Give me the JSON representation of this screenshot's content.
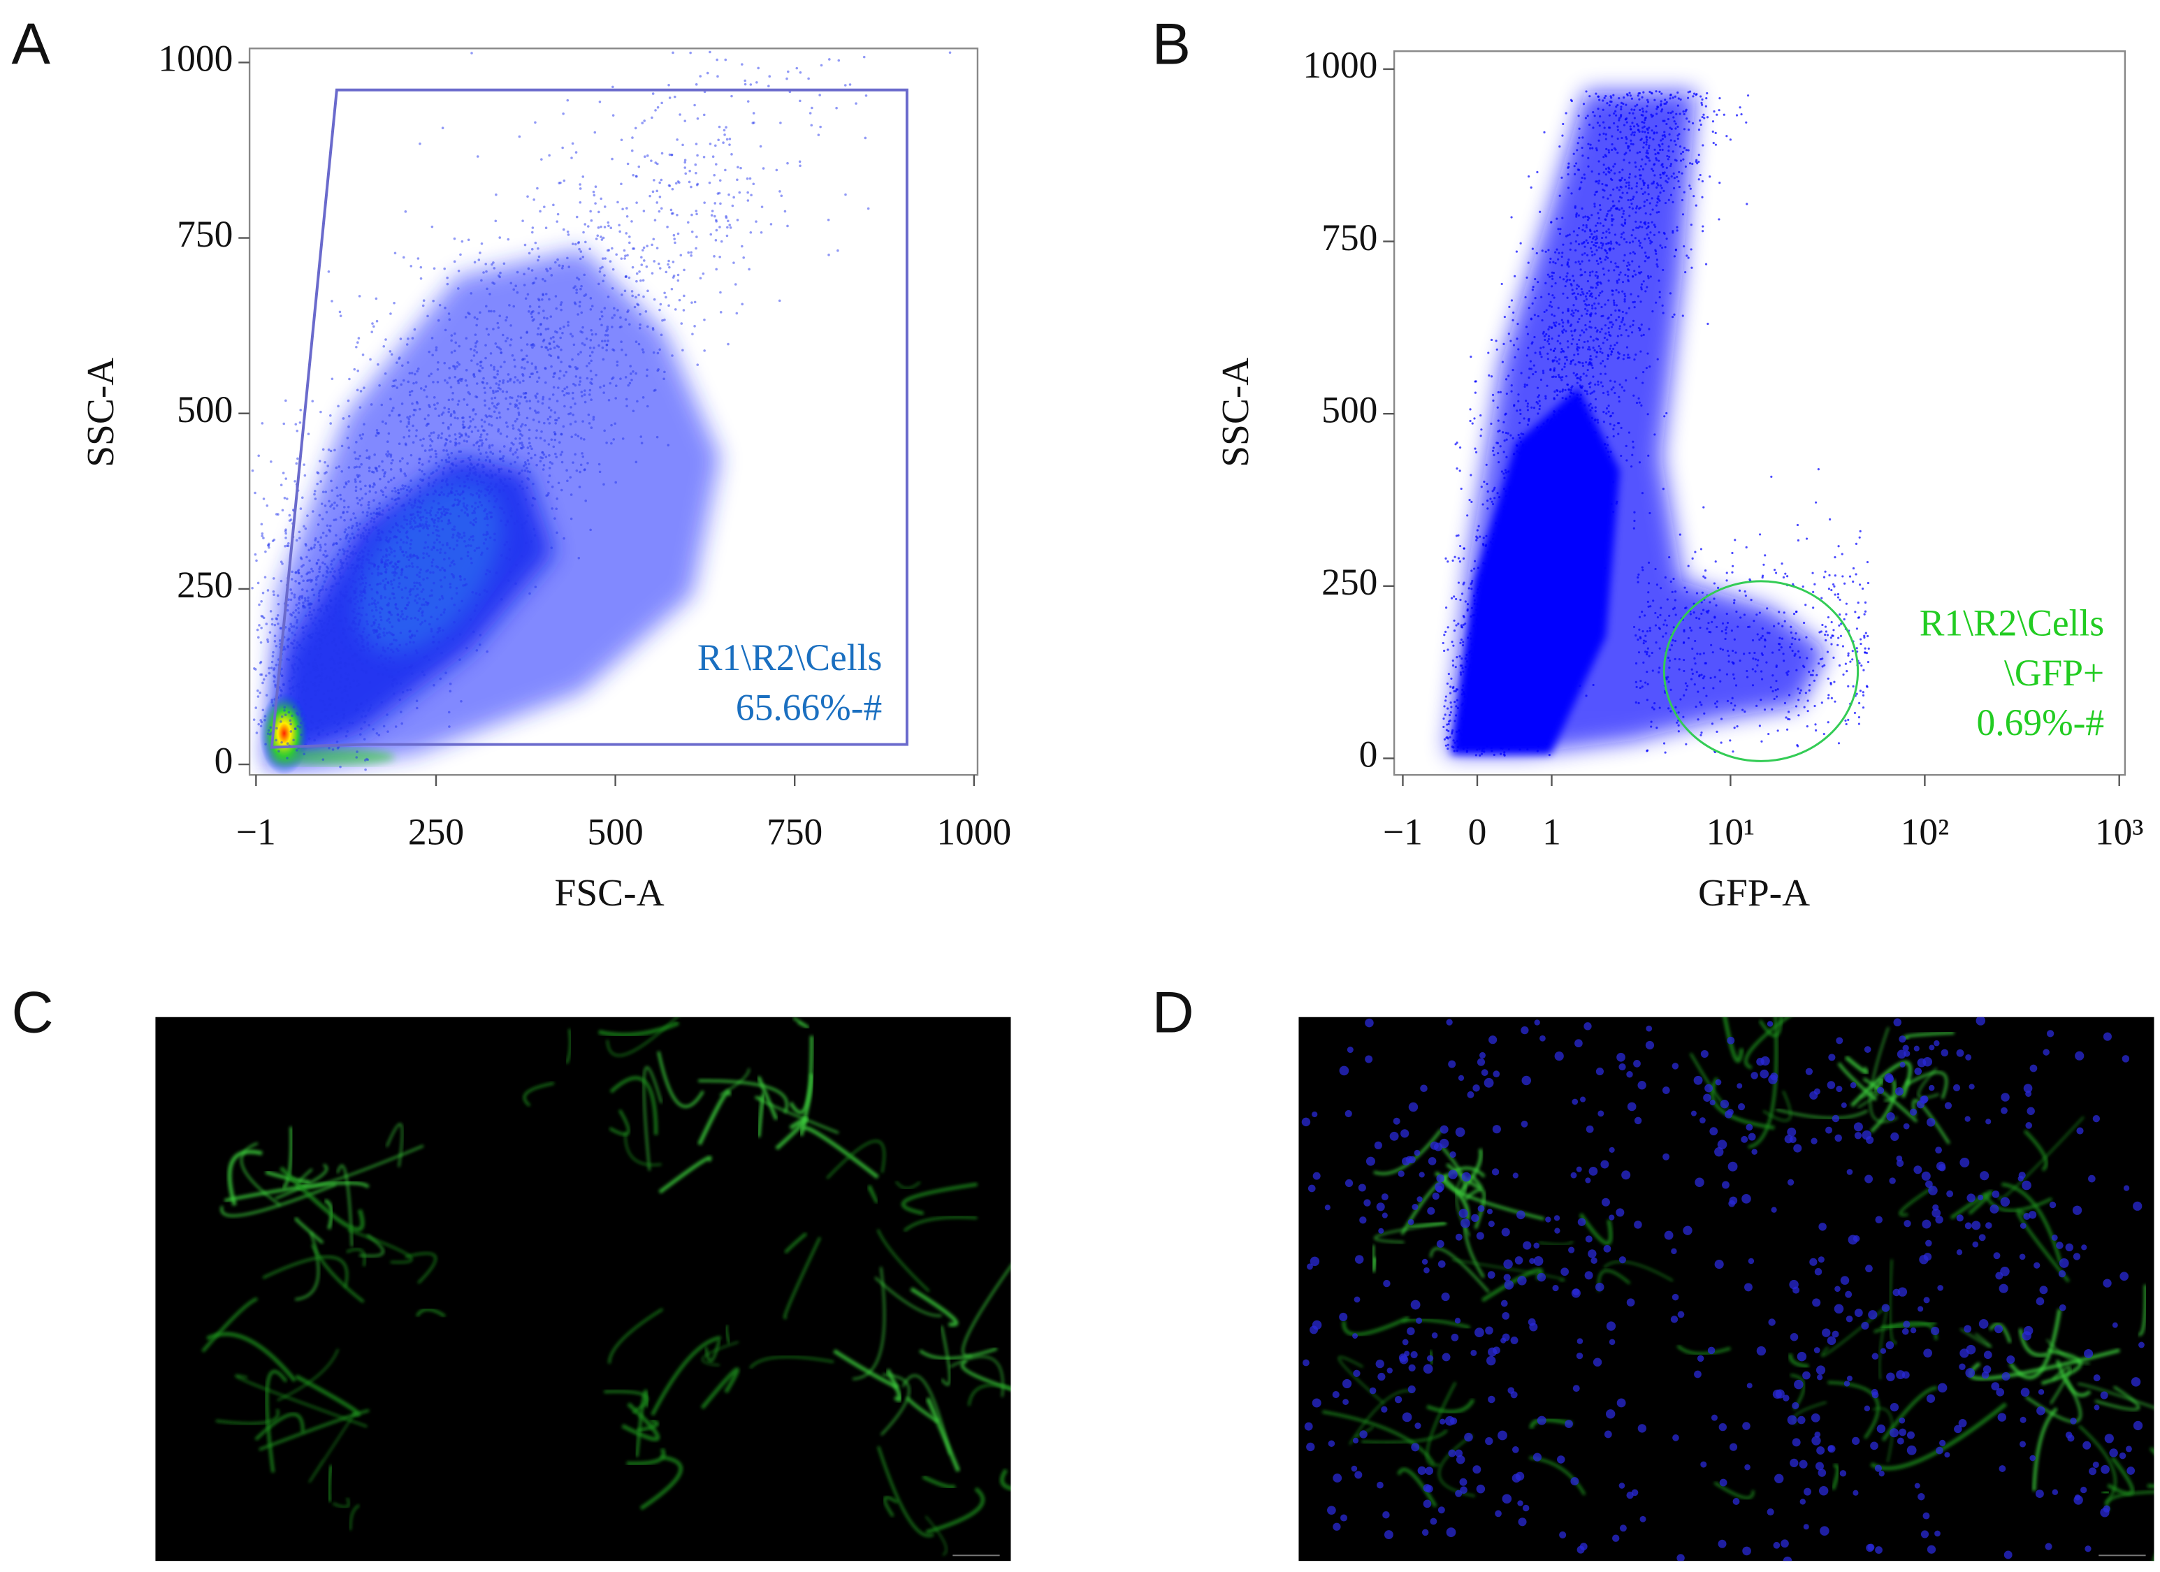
{
  "panels": [
    {
      "label": "A",
      "x_axis": {
        "title": "FSC-A",
        "lim": [
          -10,
          1005
        ],
        "ticks": [
          {
            "value": -1,
            "label": "−1"
          },
          250,
          500,
          750,
          1000
        ]
      },
      "y_axis": {
        "title": "SSC-A",
        "lim": [
          -15,
          1020
        ],
        "ticks": [
          0,
          250,
          500,
          750,
          1000
        ]
      },
      "gate": {
        "lines": [
          "R1\\R2\\Cells",
          "65.66%-#"
        ],
        "color": "#1a6fc0"
      }
    },
    {
      "label": "B",
      "x_axis": {
        "title": "GFP-A",
        "scale": "asinh",
        "lim": [
          -1.15,
          1070
        ],
        "ticks": [
          {
            "value": -1,
            "label": "−1"
          },
          0,
          1,
          {
            "value": 10,
            "label": "10¹"
          },
          {
            "value": 100,
            "label": "10²"
          },
          {
            "value": 1000,
            "label": "10³"
          }
        ]
      },
      "y_axis": {
        "title": "SSC-A",
        "lim": [
          -24,
          1026
        ],
        "ticks": [
          0,
          250,
          500,
          750,
          1000
        ]
      },
      "gate": {
        "lines": [
          "R1\\R2\\Cells",
          "\\GFP+",
          "0.69%-#"
        ],
        "color": "#22cc22"
      }
    },
    {
      "label": "C"
    },
    {
      "label": "D"
    }
  ]
}
